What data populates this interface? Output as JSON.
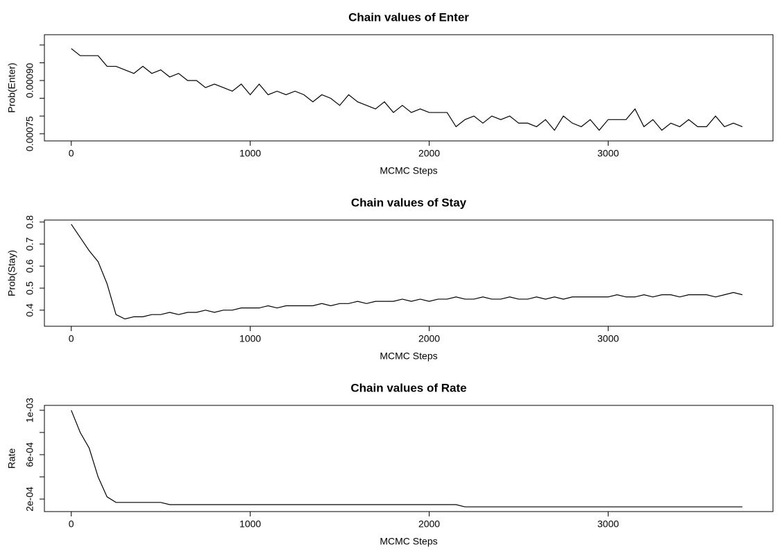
{
  "chart_data": [
    {
      "type": "line",
      "title": "Chain values of Enter",
      "xlabel": "MCMC Steps",
      "ylabel": "Prob(Enter)",
      "color": "#000000",
      "x": [
        0,
        50,
        100,
        150,
        200,
        250,
        300,
        350,
        400,
        450,
        500,
        550,
        600,
        650,
        700,
        750,
        800,
        850,
        900,
        950,
        1000,
        1050,
        1100,
        1150,
        1200,
        1250,
        1300,
        1350,
        1400,
        1450,
        1500,
        1550,
        1600,
        1650,
        1700,
        1750,
        1800,
        1850,
        1900,
        1950,
        2000,
        2050,
        2100,
        2150,
        2200,
        2250,
        2300,
        2350,
        2400,
        2450,
        2500,
        2550,
        2600,
        2650,
        2700,
        2750,
        2800,
        2850,
        2900,
        2950,
        3000,
        3050,
        3100,
        3150,
        3200,
        3250,
        3300,
        3350,
        3400,
        3450,
        3500,
        3550,
        3600,
        3650,
        3700,
        3750
      ],
      "values": [
        0.00099,
        0.00097,
        0.00097,
        0.00097,
        0.00094,
        0.00094,
        0.00093,
        0.00092,
        0.00094,
        0.00092,
        0.00093,
        0.00091,
        0.00092,
        0.0009,
        0.0009,
        0.00088,
        0.00089,
        0.00088,
        0.00087,
        0.00089,
        0.00086,
        0.00089,
        0.00086,
        0.00087,
        0.00086,
        0.00087,
        0.00086,
        0.00084,
        0.00086,
        0.00085,
        0.00083,
        0.00086,
        0.00084,
        0.00083,
        0.00082,
        0.00084,
        0.00081,
        0.00083,
        0.00081,
        0.00082,
        0.00081,
        0.00081,
        0.00081,
        0.00077,
        0.00079,
        0.0008,
        0.00078,
        0.0008,
        0.00079,
        0.0008,
        0.00078,
        0.00078,
        0.00077,
        0.00079,
        0.00076,
        0.0008,
        0.00078,
        0.00077,
        0.00079,
        0.00076,
        0.00079,
        0.00079,
        0.00079,
        0.00082,
        0.00077,
        0.00079,
        0.00076,
        0.00078,
        0.00077,
        0.00079,
        0.00077,
        0.00077,
        0.0008,
        0.00077,
        0.00078,
        0.00077
      ],
      "xlim": [
        -150,
        3921
      ],
      "xticks": [
        0,
        1000,
        2000,
        3000
      ],
      "ylim": [
        0.00073,
        0.001029
      ],
      "yticks": [
        {
          "value": 0.00075,
          "label": "0.00075"
        },
        {
          "value": 0.0008,
          "label": null
        },
        {
          "value": 0.00085,
          "label": null
        },
        {
          "value": 0.0009,
          "label": "0.00090"
        },
        {
          "value": 0.00095,
          "label": null
        },
        {
          "value": 0.001,
          "label": null
        }
      ]
    },
    {
      "type": "line",
      "title": "Chain values of Stay",
      "xlabel": "MCMC Steps",
      "ylabel": "Prob(Stay)",
      "color": "#000000",
      "x": [
        0,
        50,
        100,
        150,
        200,
        250,
        300,
        350,
        400,
        450,
        500,
        550,
        600,
        650,
        700,
        750,
        800,
        850,
        900,
        950,
        1000,
        1050,
        1100,
        1150,
        1200,
        1250,
        1300,
        1350,
        1400,
        1450,
        1500,
        1550,
        1600,
        1650,
        1700,
        1750,
        1800,
        1850,
        1900,
        1950,
        2000,
        2050,
        2100,
        2150,
        2200,
        2250,
        2300,
        2350,
        2400,
        2450,
        2500,
        2550,
        2600,
        2650,
        2700,
        2750,
        2800,
        2850,
        2900,
        2950,
        3000,
        3050,
        3100,
        3150,
        3200,
        3250,
        3300,
        3350,
        3400,
        3450,
        3500,
        3550,
        3600,
        3650,
        3700,
        3750
      ],
      "values": [
        0.79,
        0.73,
        0.67,
        0.62,
        0.52,
        0.38,
        0.36,
        0.37,
        0.37,
        0.38,
        0.38,
        0.39,
        0.38,
        0.39,
        0.39,
        0.4,
        0.39,
        0.4,
        0.4,
        0.41,
        0.41,
        0.41,
        0.42,
        0.41,
        0.42,
        0.42,
        0.42,
        0.42,
        0.43,
        0.42,
        0.43,
        0.43,
        0.44,
        0.43,
        0.44,
        0.44,
        0.44,
        0.45,
        0.44,
        0.45,
        0.44,
        0.45,
        0.45,
        0.46,
        0.45,
        0.45,
        0.46,
        0.45,
        0.45,
        0.46,
        0.45,
        0.45,
        0.46,
        0.45,
        0.46,
        0.45,
        0.46,
        0.46,
        0.46,
        0.46,
        0.46,
        0.47,
        0.46,
        0.46,
        0.47,
        0.46,
        0.47,
        0.47,
        0.46,
        0.47,
        0.47,
        0.47,
        0.46,
        0.47,
        0.48,
        0.47
      ],
      "xlim": [
        -150,
        3921
      ],
      "xticks": [
        0,
        1000,
        2000,
        3000
      ],
      "ylim": [
        0.327,
        0.809
      ],
      "yticks": [
        0.4,
        0.5,
        0.6,
        0.7,
        0.8
      ]
    },
    {
      "type": "line",
      "title": "Chain values of Rate",
      "xlabel": "MCMC Steps",
      "ylabel": "Rate",
      "color": "#000000",
      "x": [
        0,
        50,
        100,
        150,
        200,
        250,
        300,
        350,
        400,
        450,
        500,
        550,
        600,
        650,
        700,
        750,
        800,
        850,
        900,
        950,
        1000,
        1050,
        1100,
        1150,
        1200,
        1250,
        1300,
        1350,
        1400,
        1450,
        1500,
        1550,
        1600,
        1650,
        1700,
        1750,
        1800,
        1850,
        1900,
        1950,
        2000,
        2050,
        2100,
        2150,
        2200,
        2250,
        2300,
        2350,
        2400,
        2450,
        2500,
        2550,
        2600,
        2650,
        2700,
        2750,
        2800,
        2850,
        2900,
        2950,
        3000,
        3050,
        3100,
        3150,
        3200,
        3250,
        3300,
        3350,
        3400,
        3450,
        3500,
        3550,
        3600,
        3650,
        3700,
        3750
      ],
      "values": [
        0.001,
        0.0008,
        0.00066,
        0.0004,
        0.00022,
        0.00017,
        0.00017,
        0.00017,
        0.00017,
        0.00017,
        0.00017,
        0.00015,
        0.00015,
        0.00015,
        0.00015,
        0.00015,
        0.00015,
        0.00015,
        0.00015,
        0.00015,
        0.00015,
        0.00015,
        0.00015,
        0.00015,
        0.00015,
        0.00015,
        0.00015,
        0.00015,
        0.00015,
        0.00015,
        0.00015,
        0.00015,
        0.00015,
        0.00015,
        0.00015,
        0.00015,
        0.00015,
        0.00015,
        0.00015,
        0.00015,
        0.00015,
        0.00015,
        0.00015,
        0.00015,
        0.00013,
        0.00013,
        0.00013,
        0.00013,
        0.00013,
        0.00013,
        0.00013,
        0.00013,
        0.00013,
        0.00013,
        0.00013,
        0.00013,
        0.00013,
        0.00013,
        0.00013,
        0.00013,
        0.00013,
        0.00013,
        0.00013,
        0.00013,
        0.00013,
        0.00013,
        0.00013,
        0.00013,
        0.00013,
        0.00013,
        0.00013,
        0.00013,
        0.00013,
        0.00013,
        0.00013,
        0.00013
      ],
      "xlim": [
        -150,
        3921
      ],
      "xticks": [
        0,
        1000,
        2000,
        3000
      ],
      "ylim": [
        8.75e-05,
        0.001044
      ],
      "yticks": [
        {
          "value": 0.0002,
          "label": "2e-04"
        },
        {
          "value": 0.0004,
          "label": null
        },
        {
          "value": 0.0006,
          "label": "6e-04"
        },
        {
          "value": 0.0008,
          "label": null
        },
        {
          "value": 0.001,
          "label": "1e-03"
        }
      ]
    }
  ]
}
